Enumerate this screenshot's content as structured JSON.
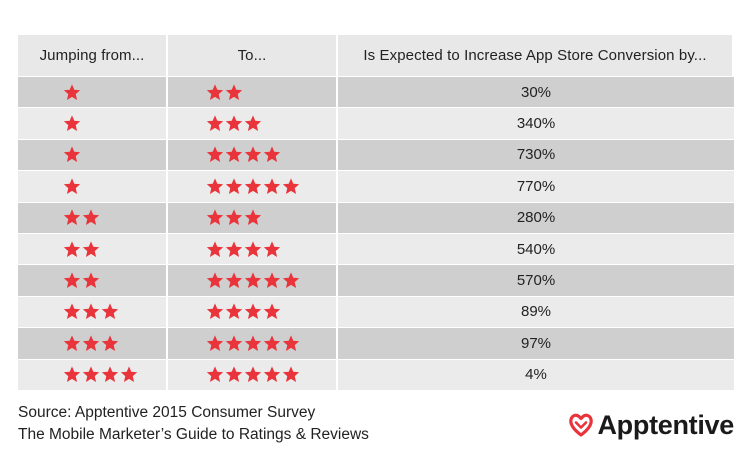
{
  "chart_data": {
    "type": "table",
    "columns": [
      "Jumping from...",
      "To...",
      "Is Expected to Increase App Store Conversion by..."
    ],
    "rows": [
      {
        "from_stars": 1,
        "to_stars": 2,
        "value": "30%"
      },
      {
        "from_stars": 1,
        "to_stars": 3,
        "value": "340%"
      },
      {
        "from_stars": 1,
        "to_stars": 4,
        "value": "730%"
      },
      {
        "from_stars": 1,
        "to_stars": 5,
        "value": "770%"
      },
      {
        "from_stars": 2,
        "to_stars": 3,
        "value": "280%"
      },
      {
        "from_stars": 2,
        "to_stars": 4,
        "value": "540%"
      },
      {
        "from_stars": 2,
        "to_stars": 5,
        "value": "570%"
      },
      {
        "from_stars": 3,
        "to_stars": 4,
        "value": "89%"
      },
      {
        "from_stars": 3,
        "to_stars": 5,
        "value": "97%"
      },
      {
        "from_stars": 4,
        "to_stars": 5,
        "value": "4%"
      }
    ]
  },
  "footer": {
    "source": "Source: Apptentive 2015 Consumer Survey",
    "guide": "The Mobile Marketer’s Guide to Ratings & Reviews"
  },
  "logo": {
    "text": "Apptentive",
    "icon": "heart-icon"
  },
  "colors": {
    "star": "#e8343a",
    "row_dark": "#cfcfcf",
    "row_light": "#ebebeb",
    "header_bg": "#e8e8e8",
    "logo_icon": "#e8343a"
  }
}
